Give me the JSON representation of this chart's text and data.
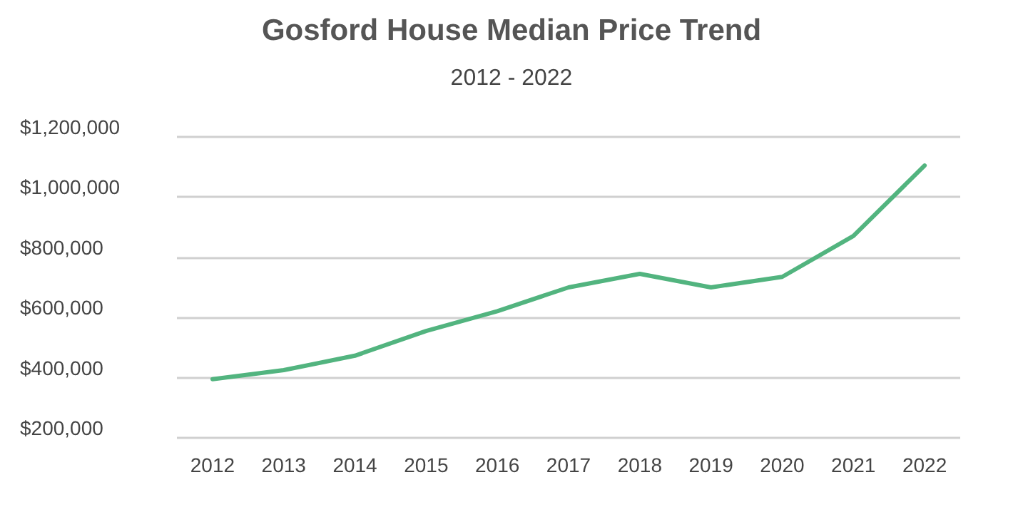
{
  "chart_data": {
    "type": "line",
    "title": "Gosford House Median Price Trend",
    "subtitle": "2012 - 2022",
    "categories": [
      "2012",
      "2013",
      "2014",
      "2015",
      "2016",
      "2017",
      "2018",
      "2019",
      "2020",
      "2021",
      "2022"
    ],
    "series": [
      {
        "color": "#52b47f",
        "values": [
          395000,
          425000,
          473000,
          555000,
          621000,
          700000,
          745000,
          700000,
          735000,
          871000,
          1105000
        ]
      }
    ],
    "ylim": [
      200000,
      1200000
    ],
    "yticks": [
      {
        "value": 200000,
        "label": "$200,000"
      },
      {
        "value": 400000,
        "label": "$400,000"
      },
      {
        "value": 600000,
        "label": "$600,000"
      },
      {
        "value": 800000,
        "label": "$800,000"
      },
      {
        "value": 1000000,
        "label": "$1,000,000"
      },
      {
        "value": 1200000,
        "label": "$1,200,000"
      }
    ],
    "grid": "y",
    "marker": "none",
    "line_style": "solid"
  }
}
